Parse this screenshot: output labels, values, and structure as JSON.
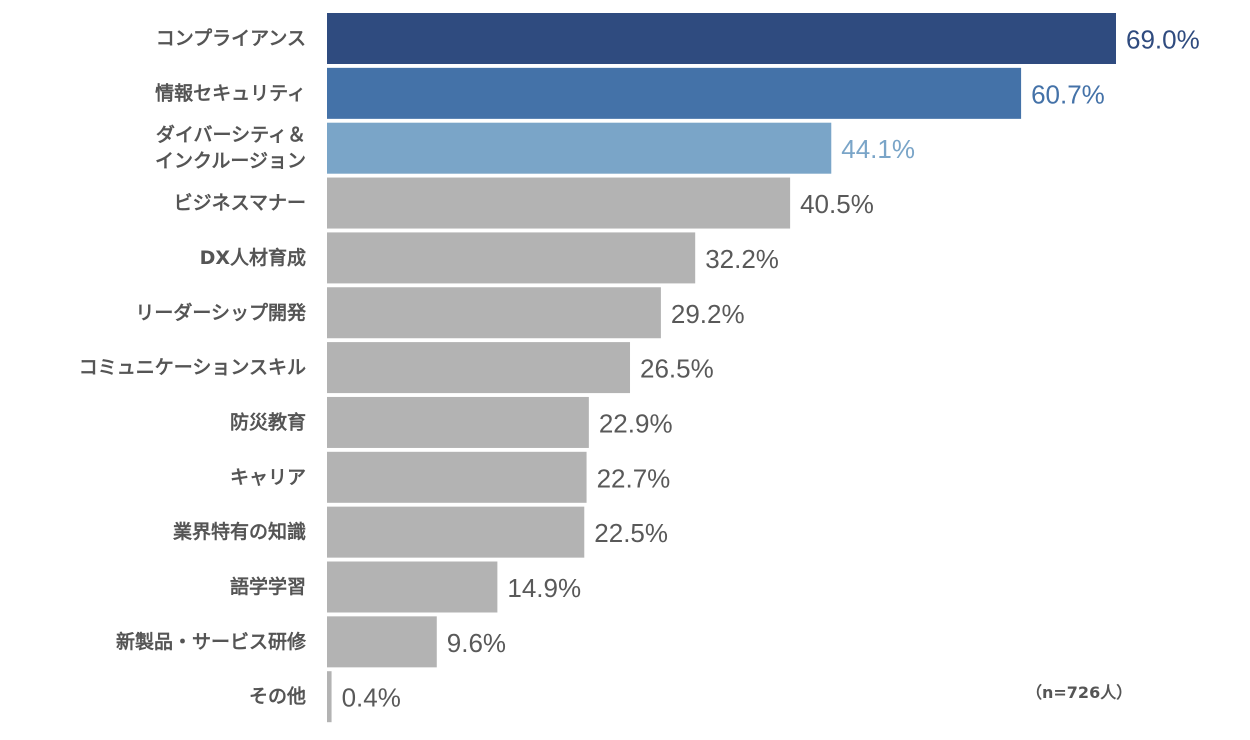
{
  "chart_data": {
    "type": "bar",
    "orientation": "horizontal",
    "categories": [
      [
        "コンプライアンス"
      ],
      [
        "情報セキュリティ"
      ],
      [
        "ダイバーシティ＆",
        "インクルージョン"
      ],
      [
        "ビジネスマナー"
      ],
      [
        "DX人材育成"
      ],
      [
        "リーダーシップ開発"
      ],
      [
        "コミュニケーションスキル"
      ],
      [
        "防災教育"
      ],
      [
        "キャリア"
      ],
      [
        "業界特有の知識"
      ],
      [
        "語学学習"
      ],
      [
        "新製品・サービス研修"
      ],
      [
        "その他"
      ]
    ],
    "values": [
      69.0,
      60.7,
      44.1,
      40.5,
      32.2,
      29.2,
      26.5,
      22.9,
      22.7,
      22.5,
      14.9,
      9.6,
      0.4
    ],
    "value_labels": [
      "69.0%",
      "60.7%",
      "44.1%",
      "40.5%",
      "32.2%",
      "29.2%",
      "26.5%",
      "22.9%",
      "22.7%",
      "22.5%",
      "14.9%",
      "9.6%",
      "0.4%"
    ],
    "bar_colors": [
      "#2f4b7f",
      "#4472a8",
      "#7aa5c8",
      "#b3b3b3",
      "#b3b3b3",
      "#b3b3b3",
      "#b3b3b3",
      "#b3b3b3",
      "#b3b3b3",
      "#b3b3b3",
      "#b3b3b3",
      "#b3b3b3",
      "#b3b3b3"
    ],
    "label_colors": [
      "#2f4b7f",
      "#4472a8",
      "#7aa5c8",
      "#595959",
      "#595959",
      "#595959",
      "#595959",
      "#595959",
      "#595959",
      "#595959",
      "#595959",
      "#595959",
      "#595959"
    ],
    "xlim": [
      0,
      69
    ],
    "grid": false,
    "legend": "none",
    "sample_note": "（n=726人）"
  }
}
